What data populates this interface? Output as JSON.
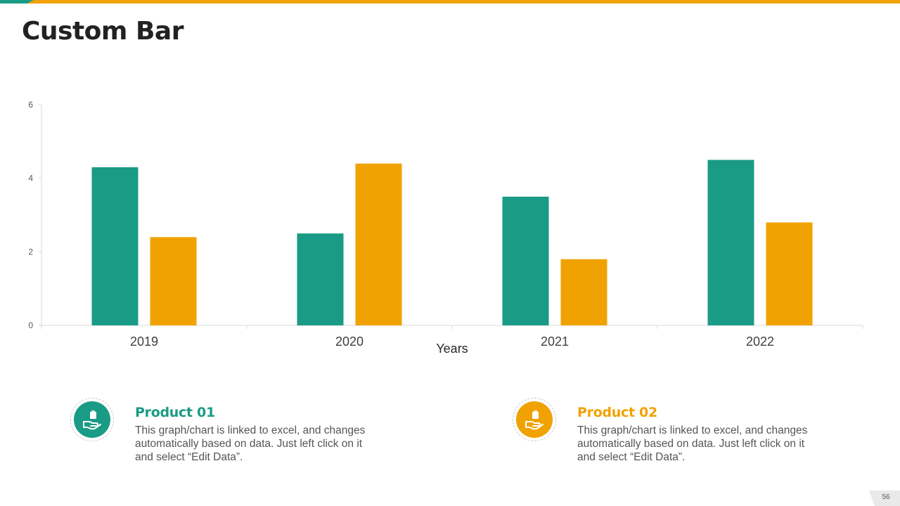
{
  "slide": {
    "title": "Custom Bar",
    "page_number": "56"
  },
  "colors": {
    "product01": "#1A9B86",
    "product02": "#F0A202",
    "axis": "#d9d9d9",
    "tick_text": "#595959"
  },
  "legend": [
    {
      "title": "Product 01",
      "description": "This graph/chart is linked to excel, and changes automatically based on data. Just left click on it and select “Edit Data”.",
      "icon": "hand-holding-bag-icon"
    },
    {
      "title": "Product 02",
      "description": "This graph/chart is linked to excel, and changes automatically based on data. Just left click on it and select “Edit Data”.",
      "icon": "hand-holding-bag-icon"
    }
  ],
  "chart_data": {
    "type": "bar",
    "title": "",
    "xlabel": "Years",
    "ylabel": "",
    "categories": [
      "2019",
      "2020",
      "2021",
      "2022"
    ],
    "series": [
      {
        "name": "Product 01",
        "values": [
          4.3,
          2.5,
          3.5,
          4.5
        ]
      },
      {
        "name": "Product 02",
        "values": [
          2.4,
          4.4,
          1.8,
          2.8
        ]
      }
    ],
    "ylim": [
      0,
      6
    ],
    "yticks": [
      0,
      2,
      4,
      6
    ],
    "grid": false
  }
}
